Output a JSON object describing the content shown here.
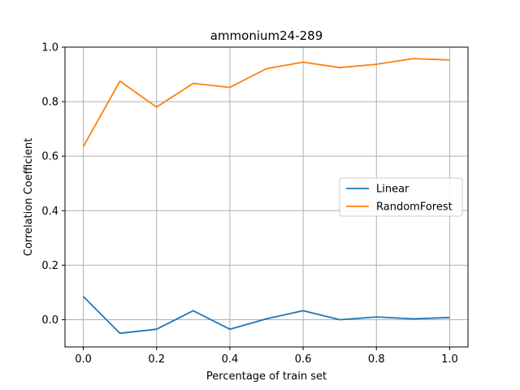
{
  "chart_data": {
    "type": "line",
    "title": "ammonium24-289",
    "xlabel": "Percentage of train set",
    "ylabel": "Correlation Coefficient",
    "xlim": [
      -0.05,
      1.05
    ],
    "ylim": [
      -0.1,
      1.0
    ],
    "xticks": [
      "0.0",
      "0.2",
      "0.4",
      "0.6",
      "0.8",
      "1.0"
    ],
    "yticks": [
      "0.0",
      "0.2",
      "0.4",
      "0.6",
      "0.8",
      "1.0"
    ],
    "grid": true,
    "legend_position": "center-right",
    "x": [
      0.0,
      0.1,
      0.2,
      0.3,
      0.4,
      0.5,
      0.6,
      0.7,
      0.8,
      0.9,
      1.0
    ],
    "series": [
      {
        "name": "Linear",
        "color": "#1f77b4",
        "values": [
          0.085,
          -0.05,
          -0.035,
          0.033,
          -0.035,
          0.003,
          0.033,
          0.0,
          0.01,
          0.003,
          0.008
        ]
      },
      {
        "name": "RandomForest",
        "color": "#ff7f0e",
        "values": [
          0.635,
          0.875,
          0.78,
          0.867,
          0.852,
          0.921,
          0.945,
          0.925,
          0.937,
          0.958,
          0.953
        ]
      }
    ]
  }
}
